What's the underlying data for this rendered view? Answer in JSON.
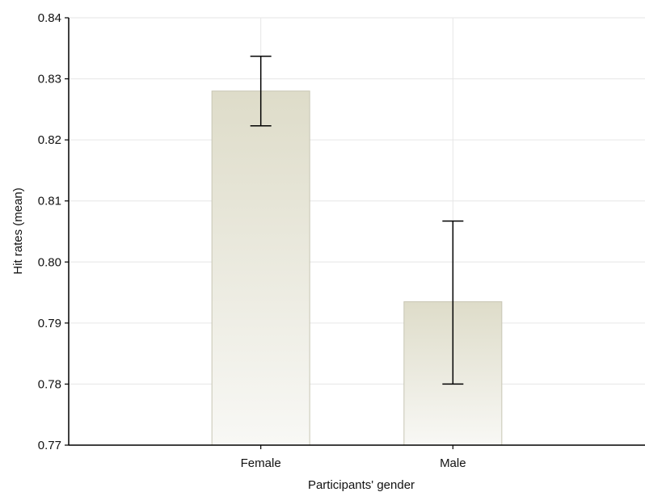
{
  "chart_data": {
    "type": "bar",
    "title": "",
    "xlabel": "Participants' gender",
    "ylabel": "Hit rates (mean)",
    "categories": [
      "Female",
      "Male"
    ],
    "values": [
      0.828,
      0.7935
    ],
    "error_bars": [
      {
        "low": 0.8223,
        "high": 0.8337
      },
      {
        "low": 0.78,
        "high": 0.8067
      }
    ],
    "ylim": [
      0.77,
      0.84
    ],
    "yticks": [
      "0.84",
      "0.83",
      "0.82",
      "0.81",
      "0.80",
      "0.79",
      "0.78",
      "0.77"
    ],
    "grid": true,
    "colors": {
      "bar_top": "#dedcc9",
      "bar_bottom": "#f8f8f5",
      "bar_stroke": "#c8c6b4",
      "grid": "#e6e6e6",
      "axis": "#000000"
    }
  }
}
